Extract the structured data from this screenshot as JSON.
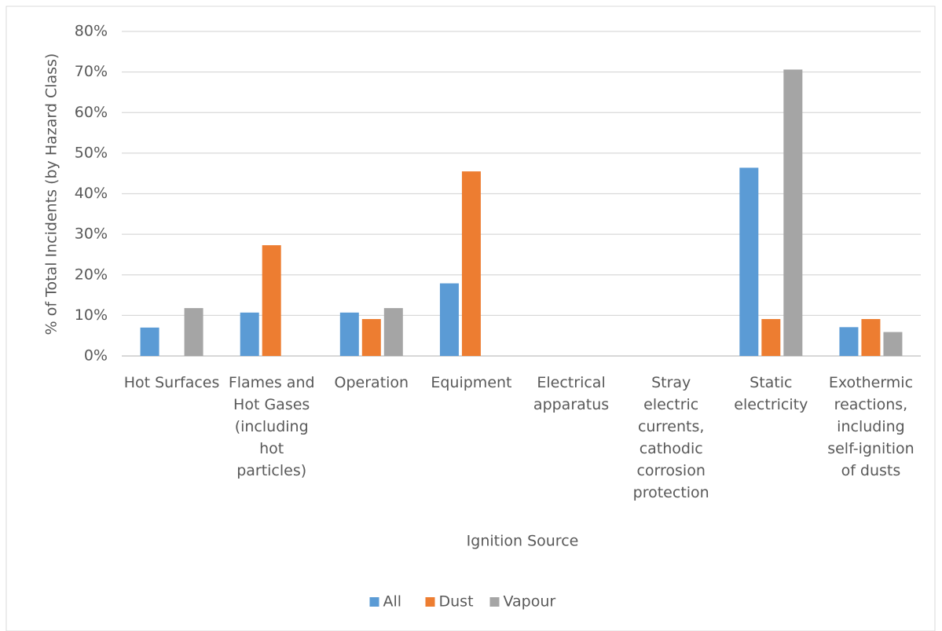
{
  "chart_data": {
    "type": "bar",
    "y_label": "% of Total Incidents (by Hazard Class)",
    "x_label": "Ignition Source",
    "categories": [
      "Hot Surfaces",
      "Flames and Hot Gases (including hot particles)",
      "Operation",
      "Equipment",
      "Electrical apparatus",
      "Stray electric currents, cathodic corrosion protection",
      "Static electricity",
      "Exothermic reactions, including self-ignition of dusts"
    ],
    "series": [
      {
        "name": "All",
        "color": "#5b9bd5",
        "values": [
          7.0,
          10.7,
          10.7,
          17.9,
          0,
          0,
          46.4,
          7.1
        ]
      },
      {
        "name": "Dust",
        "color": "#ed7d31",
        "values": [
          0,
          27.3,
          9.1,
          45.5,
          0,
          0,
          9.1,
          9.1
        ]
      },
      {
        "name": "Vapour",
        "color": "#a5a5a5",
        "values": [
          11.8,
          0,
          11.8,
          0,
          0,
          0,
          70.6,
          5.9
        ]
      }
    ],
    "ylim": [
      0,
      80
    ],
    "yticks": [
      {
        "value": 0,
        "label": "0%"
      },
      {
        "value": 10,
        "label": "10%"
      },
      {
        "value": 20,
        "label": "20%"
      },
      {
        "value": 30,
        "label": "30%"
      },
      {
        "value": 40,
        "label": "40%"
      },
      {
        "value": 50,
        "label": "50%"
      },
      {
        "value": 60,
        "label": "60%"
      },
      {
        "value": 70,
        "label": "70%"
      },
      {
        "value": 80,
        "label": "80%"
      }
    ],
    "grid": true,
    "legend": "bottom"
  }
}
